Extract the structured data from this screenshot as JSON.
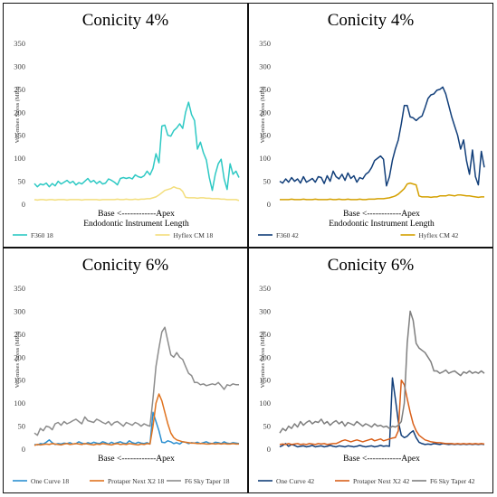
{
  "chart_data": [
    {
      "type": "line",
      "title": "Conicity 4%",
      "xlabel_line1": "Base <------------Apex",
      "xlabel_line2": "Endodontic Instrument Length",
      "ylabel": "Von-mises Stress (MPa)",
      "ylim": [
        0,
        350
      ],
      "yticks": [
        0,
        50,
        100,
        150,
        200,
        250,
        300,
        350
      ],
      "grid": false,
      "legend_position": "bottom",
      "series": [
        {
          "name": "F360 18",
          "color": "#2ec9c4",
          "values": [
            45,
            38,
            44,
            42,
            46,
            38,
            45,
            40,
            50,
            44,
            48,
            52,
            46,
            50,
            42,
            47,
            44,
            50,
            56,
            48,
            52,
            45,
            50,
            44,
            46,
            55,
            52,
            48,
            42,
            56,
            58,
            56,
            58,
            55,
            64,
            60,
            58,
            62,
            72,
            64,
            78,
            110,
            90,
            170,
            172,
            150,
            148,
            160,
            166,
            175,
            165,
            200,
            222,
            195,
            182,
            120,
            135,
            112,
            96,
            58,
            30,
            65,
            88,
            98,
            55,
            32,
            88,
            65,
            72,
            58
          ]
        },
        {
          "name": "Hyflex CM 18",
          "color": "#f3de7c",
          "values": [
            10,
            9,
            10,
            10,
            9,
            10,
            10,
            9,
            10,
            10,
            10,
            9,
            10,
            10,
            10,
            10,
            9,
            10,
            10,
            10,
            10,
            10,
            9,
            10,
            10,
            10,
            10,
            10,
            11,
            10,
            10,
            11,
            10,
            10,
            11,
            10,
            11,
            11,
            12,
            12,
            14,
            16,
            20,
            25,
            30,
            32,
            34,
            38,
            35,
            34,
            28,
            15,
            14,
            14,
            14,
            13,
            14,
            14,
            13,
            13,
            12,
            12,
            12,
            11,
            11,
            10,
            10,
            10,
            10,
            8
          ]
        }
      ]
    },
    {
      "type": "line",
      "title": "Conicity 4%",
      "xlabel_line1": "Base <------------Apex",
      "xlabel_line2": "Endodontic Instrument Length",
      "ylabel": "Von-mises Stress (MPa)",
      "ylim": [
        0,
        350
      ],
      "yticks": [
        0,
        50,
        100,
        150,
        200,
        250,
        300,
        350
      ],
      "grid": false,
      "legend_position": "bottom",
      "series": [
        {
          "name": "F360 42",
          "color": "#123f7a",
          "values": [
            50,
            46,
            55,
            48,
            58,
            50,
            55,
            46,
            60,
            48,
            52,
            56,
            48,
            60,
            58,
            45,
            62,
            50,
            72,
            60,
            55,
            65,
            52,
            68,
            56,
            62,
            48,
            58,
            55,
            65,
            70,
            80,
            95,
            100,
            105,
            98,
            40,
            60,
            96,
            120,
            140,
            175,
            215,
            215,
            190,
            188,
            182,
            188,
            192,
            210,
            230,
            238,
            240,
            248,
            250,
            255,
            240,
            215,
            190,
            170,
            150,
            120,
            140,
            95,
            65,
            118,
            60,
            42,
            115,
            80
          ]
        },
        {
          "name": "Hyflex CM 42",
          "color": "#d4a000",
          "values": [
            10,
            10,
            10,
            10,
            11,
            10,
            10,
            10,
            11,
            10,
            10,
            10,
            11,
            10,
            10,
            10,
            10,
            11,
            10,
            10,
            11,
            10,
            10,
            11,
            10,
            10,
            10,
            11,
            10,
            10,
            11,
            11,
            11,
            12,
            12,
            12,
            13,
            14,
            16,
            18,
            22,
            28,
            34,
            44,
            46,
            44,
            42,
            18,
            16,
            16,
            16,
            15,
            16,
            16,
            18,
            18,
            18,
            20,
            19,
            18,
            20,
            20,
            19,
            18,
            18,
            17,
            16,
            15,
            16,
            16
          ]
        }
      ]
    },
    {
      "type": "line",
      "title": "Conicity 6%",
      "xlabel_line1": "Base <------------Apex",
      "xlabel_line2": "",
      "ylabel": "Von-mises Stress (MPa)",
      "ylim": [
        0,
        350
      ],
      "yticks": [
        0,
        50,
        100,
        150,
        200,
        250,
        300,
        350
      ],
      "grid": false,
      "legend_position": "bottom",
      "series": [
        {
          "name": "One Curve 18",
          "color": "#2c8fd0",
          "values": [
            10,
            9,
            12,
            11,
            15,
            20,
            14,
            10,
            12,
            11,
            13,
            12,
            14,
            11,
            12,
            16,
            13,
            11,
            14,
            12,
            15,
            13,
            12,
            16,
            14,
            11,
            15,
            12,
            14,
            16,
            13,
            12,
            18,
            14,
            12,
            15,
            13,
            12,
            14,
            11,
            80,
            60,
            40,
            15,
            14,
            18,
            16,
            12,
            14,
            11,
            16,
            15,
            12,
            14,
            13,
            15,
            12,
            14,
            16,
            13,
            12,
            15,
            14,
            12,
            16,
            13,
            12,
            14,
            13,
            12
          ]
        },
        {
          "name": "Protaper Next X2 18",
          "color": "#e0731f",
          "values": [
            8,
            10,
            9,
            10,
            11,
            10,
            12,
            11,
            10,
            9,
            11,
            12,
            10,
            11,
            12,
            11,
            10,
            12,
            11,
            10,
            9,
            11,
            10,
            12,
            11,
            10,
            9,
            11,
            12,
            10,
            11,
            10,
            12,
            11,
            10,
            9,
            11,
            10,
            12,
            11,
            50,
            100,
            120,
            105,
            80,
            55,
            35,
            25,
            20,
            18,
            16,
            15,
            14,
            13,
            13,
            12,
            12,
            12,
            11,
            11,
            12,
            11,
            12,
            11,
            12,
            11,
            11,
            12,
            11,
            11
          ]
        },
        {
          "name": "F6 Sky Taper 18",
          "color": "#8c8c8c",
          "values": [
            35,
            30,
            45,
            40,
            50,
            48,
            42,
            55,
            58,
            52,
            60,
            55,
            58,
            62,
            65,
            60,
            55,
            70,
            62,
            60,
            58,
            65,
            62,
            58,
            55,
            60,
            52,
            58,
            60,
            55,
            50,
            58,
            55,
            52,
            58,
            55,
            50,
            55,
            52,
            50,
            110,
            180,
            220,
            255,
            265,
            235,
            205,
            200,
            210,
            200,
            195,
            180,
            165,
            160,
            145,
            145,
            140,
            142,
            138,
            140,
            142,
            140,
            145,
            138,
            130,
            140,
            138,
            142,
            140,
            140
          ]
        }
      ]
    },
    {
      "type": "line",
      "title": "Conicity 6%",
      "xlabel_line1": "Base <------------Apex",
      "xlabel_line2": "",
      "ylabel": "Von-mises Stress (MPa)",
      "ylim": [
        0,
        350
      ],
      "yticks": [
        0,
        50,
        100,
        150,
        200,
        250,
        300,
        350
      ],
      "grid": false,
      "legend_position": "bottom",
      "series": [
        {
          "name": "One Curve 42",
          "color": "#123f7a",
          "values": [
            5,
            8,
            12,
            6,
            10,
            8,
            5,
            6,
            7,
            5,
            6,
            8,
            5,
            6,
            7,
            5,
            6,
            8,
            6,
            5,
            7,
            6,
            5,
            7,
            6,
            5,
            6,
            8,
            6,
            5,
            6,
            7,
            5,
            6,
            8,
            6,
            7,
            6,
            155,
            110,
            60,
            30,
            25,
            28,
            35,
            40,
            25,
            15,
            12,
            10,
            11,
            10,
            12,
            11,
            10,
            12,
            11,
            10,
            11,
            10,
            11,
            10,
            11,
            10,
            11,
            10,
            11,
            10,
            11,
            10
          ]
        },
        {
          "name": "Protaper Next X2 42",
          "color": "#d9601a",
          "values": [
            10,
            11,
            10,
            12,
            10,
            11,
            12,
            10,
            11,
            10,
            12,
            11,
            10,
            12,
            11,
            12,
            10,
            11,
            12,
            12,
            15,
            18,
            20,
            18,
            16,
            18,
            20,
            18,
            16,
            18,
            20,
            22,
            18,
            20,
            22,
            18,
            20,
            22,
            24,
            25,
            40,
            150,
            140,
            110,
            80,
            55,
            40,
            30,
            25,
            20,
            18,
            16,
            15,
            14,
            14,
            13,
            12,
            12,
            12,
            11,
            12,
            11,
            12,
            11,
            12,
            11,
            12,
            11,
            12,
            11
          ]
        },
        {
          "name": "F6 Sky Taper 42",
          "color": "#7f7f7f",
          "values": [
            35,
            45,
            40,
            50,
            45,
            55,
            48,
            60,
            52,
            58,
            62,
            55,
            60,
            58,
            65,
            55,
            60,
            52,
            58,
            62,
            55,
            60,
            50,
            58,
            55,
            52,
            60,
            55,
            50,
            55,
            52,
            48,
            55,
            50,
            52,
            48,
            50,
            45,
            50,
            48,
            52,
            60,
            100,
            230,
            300,
            280,
            230,
            220,
            215,
            210,
            200,
            190,
            170,
            170,
            165,
            168,
            172,
            165,
            168,
            170,
            165,
            160,
            168,
            165,
            170,
            165,
            168,
            165,
            170,
            165
          ]
        }
      ]
    }
  ]
}
